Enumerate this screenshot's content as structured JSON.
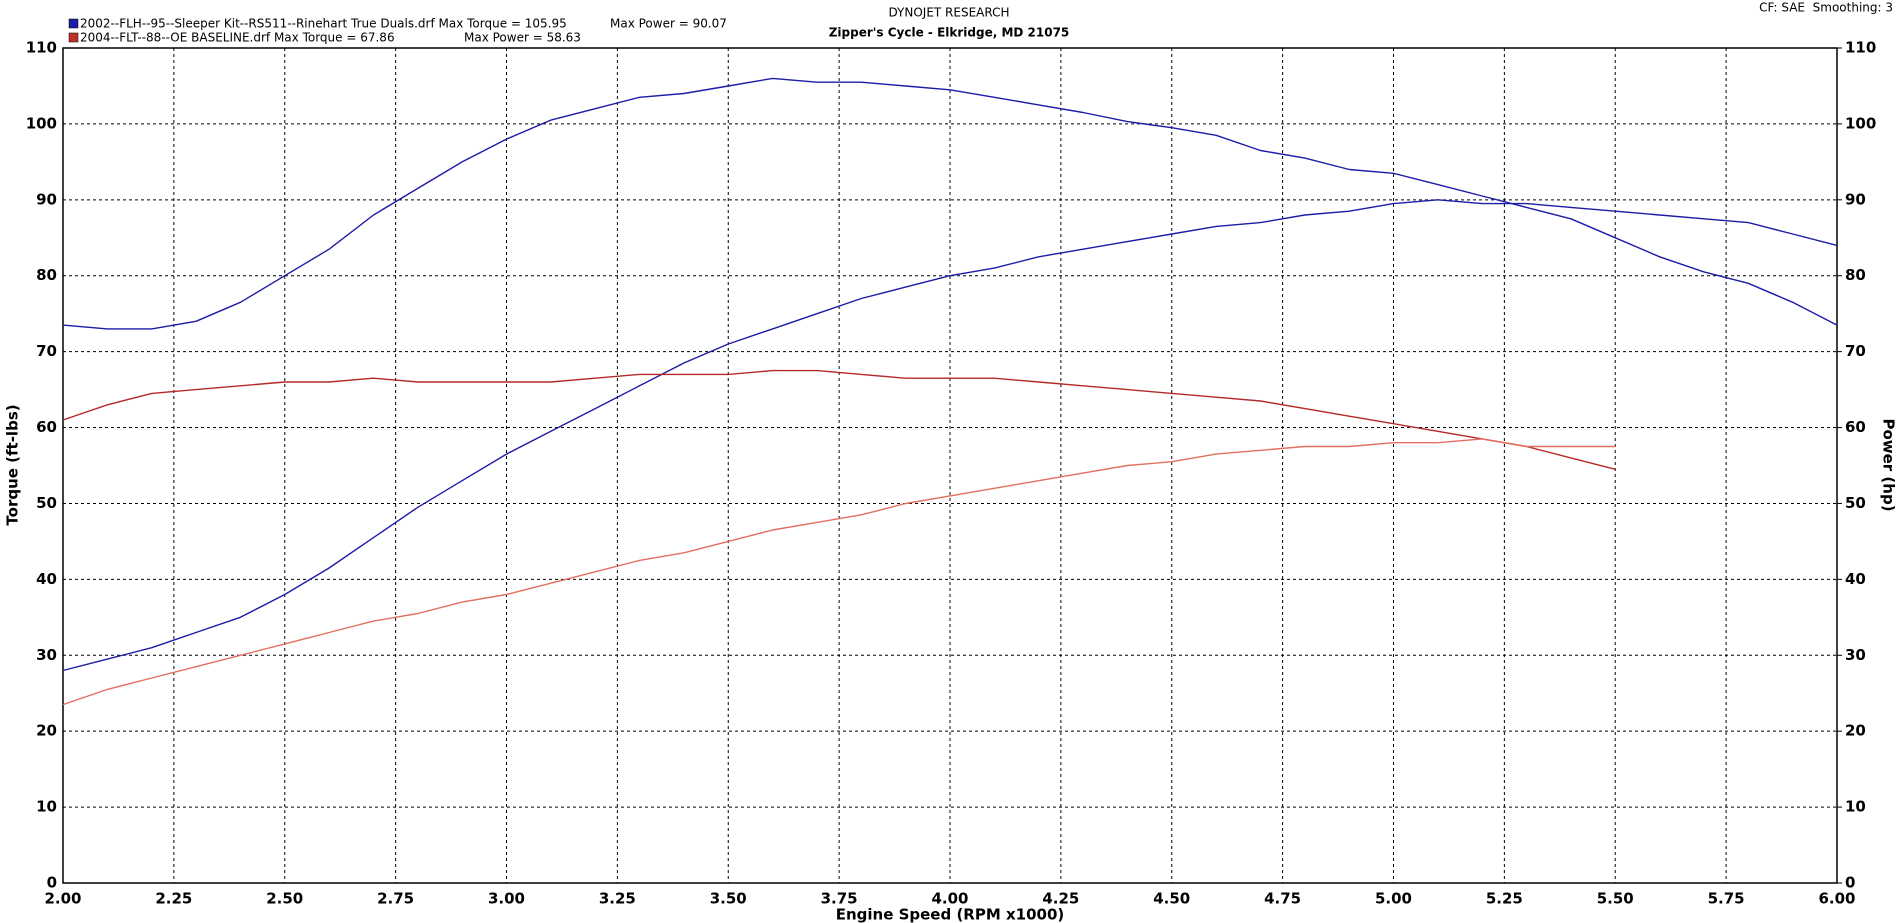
{
  "chart_data": {
    "type": "line",
    "title": "DYNOJET RESEARCH",
    "subtitle": "Zipper's Cycle - Elkridge, MD 21075",
    "settings_label": "CF: SAE  Smoothing: 3",
    "runs": [
      {
        "name": "2002--FLH--95--Sleeper Kit--RS511--Rinehart True Duals.drf Max Torque = 105.95",
        "max_power_label": "Max Power = 90.07",
        "color": "#1c1ca8"
      },
      {
        "name": "2004--FLT--88--OE BASELINE.drf Max Torque = 67.86",
        "max_power_label": "Max Power = 58.63",
        "color": "#c0302a"
      }
    ],
    "x_label": "Engine Speed (RPM x1000)",
    "y_label": "Torque (ft-lbs)",
    "y2_label": "Power (hp)",
    "x": [
      2.0,
      2.1,
      2.2,
      2.3,
      2.4,
      2.5,
      2.6,
      2.7,
      2.8,
      2.9,
      3.0,
      3.1,
      3.2,
      3.3,
      3.4,
      3.5,
      3.6,
      3.7,
      3.8,
      3.9,
      4.0,
      4.1,
      4.2,
      4.3,
      4.4,
      4.5,
      4.6,
      4.7,
      4.8,
      4.9,
      5.0,
      5.1,
      5.2,
      5.3,
      5.4,
      5.5,
      5.6,
      5.7,
      5.8,
      5.9,
      6.0
    ],
    "series": [
      {
        "color": "#1c1ca8",
        "axis": "y",
        "values": [
          73.5,
          73,
          73,
          74,
          76.5,
          80,
          83.5,
          88,
          91.5,
          95,
          98,
          100.5,
          102,
          103.5,
          104,
          105,
          106,
          105.5,
          105.5,
          105,
          104.5,
          103.5,
          102.5,
          101.5,
          100.3,
          99.5,
          98.5,
          96.5,
          95.5,
          94,
          93.5,
          92,
          90.5,
          89,
          87.5,
          85,
          82.5,
          80.5,
          79,
          76.5,
          73.5
        ]
      },
      {
        "color": "#1c1ca8",
        "axis": "y2",
        "values": [
          28,
          29.5,
          31,
          33,
          35,
          38,
          41.5,
          45.5,
          49.5,
          53,
          56.5,
          59.5,
          62.5,
          65.5,
          68.5,
          71,
          73,
          75,
          77,
          78.5,
          80,
          81,
          82.5,
          83.5,
          84.5,
          85.5,
          86.5,
          87,
          88,
          88.5,
          89.5,
          90,
          89.5,
          89.5,
          89,
          88.5,
          88,
          87.5,
          87,
          85.5,
          84
        ]
      },
      {
        "color": "#b52a26",
        "axis": "y",
        "values": [
          61,
          63,
          64.5,
          65,
          65.5,
          66,
          66,
          66.5,
          66,
          66,
          66,
          66,
          66.5,
          67,
          67,
          67,
          67.5,
          67.5,
          67,
          66.5,
          66.5,
          66.5,
          66,
          65.5,
          65,
          64.5,
          64,
          63.5,
          62.5,
          61.5,
          60.5,
          59.5,
          58.5,
          57.5,
          56,
          54.5,
          null,
          null,
          null,
          null,
          null
        ]
      },
      {
        "color": "#e2705f",
        "axis": "y2",
        "values": [
          23.5,
          25.5,
          27,
          28.5,
          30,
          31.5,
          33,
          34.5,
          35.5,
          37,
          38,
          39.5,
          41,
          42.5,
          43.5,
          45,
          46.5,
          47.5,
          48.5,
          50,
          51,
          52,
          53,
          54,
          55,
          55.5,
          56.5,
          57,
          57.5,
          57.5,
          58,
          58,
          58.5,
          57.5,
          57.5,
          57.5,
          null,
          null,
          null,
          null,
          null
        ]
      }
    ],
    "xlim": [
      2,
      6
    ],
    "xticks": [
      {
        "value": 2,
        "label": "2.00"
      },
      {
        "value": 2.25,
        "label": "2.25"
      },
      {
        "value": 2.5,
        "label": "2.50"
      },
      {
        "value": 2.75,
        "label": "2.75"
      },
      {
        "value": 3,
        "label": "3.00"
      },
      {
        "value": 3.25,
        "label": "3.25"
      },
      {
        "value": 3.5,
        "label": "3.50"
      },
      {
        "value": 3.75,
        "label": "3.75"
      },
      {
        "value": 4,
        "label": "4.00"
      },
      {
        "value": 4.25,
        "label": "4.25"
      },
      {
        "value": 4.5,
        "label": "4.50"
      },
      {
        "value": 4.75,
        "label": "4.75"
      },
      {
        "value": 5,
        "label": "5.00"
      },
      {
        "value": 5.25,
        "label": "5.25"
      },
      {
        "value": 5.5,
        "label": "5.50"
      },
      {
        "value": 5.75,
        "label": "5.75"
      },
      {
        "value": 6,
        "label": "6.00"
      }
    ],
    "ylim": [
      0,
      110
    ],
    "yticks": [
      0,
      10,
      20,
      30,
      40,
      50,
      60,
      70,
      80,
      90,
      100,
      110
    ],
    "y2lim": [
      0,
      110
    ],
    "y2ticks": [
      0,
      10,
      20,
      30,
      40,
      50,
      60,
      70,
      80,
      90,
      100,
      110
    ],
    "grid": true
  }
}
